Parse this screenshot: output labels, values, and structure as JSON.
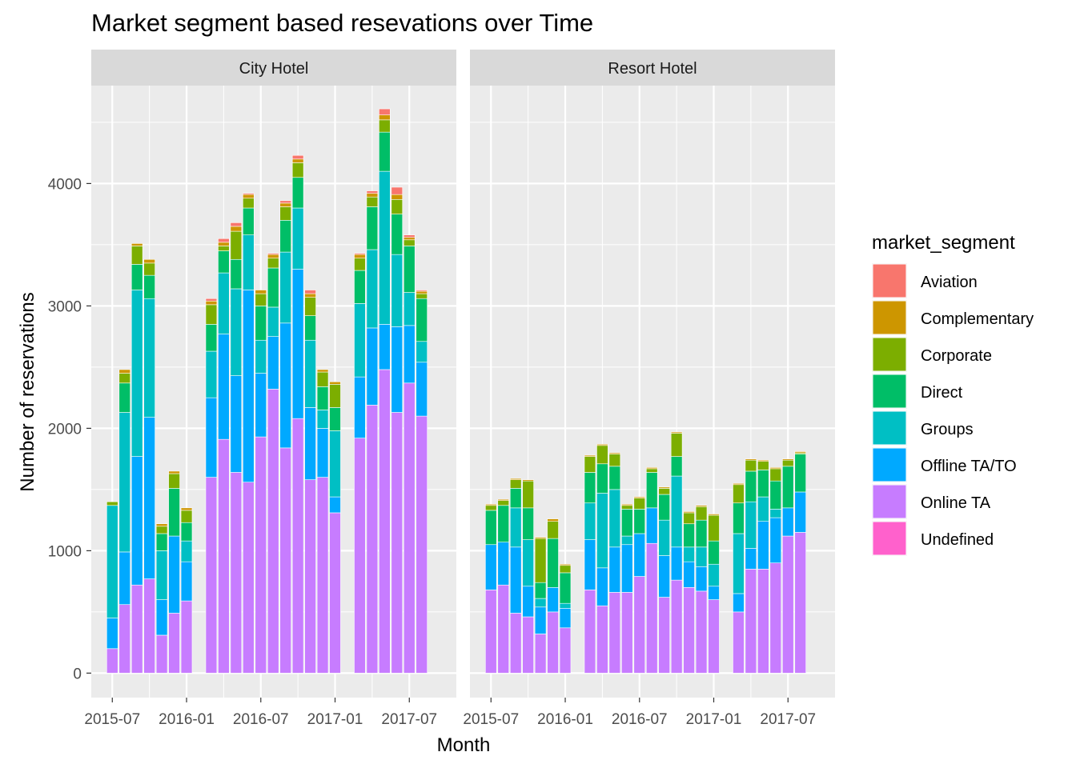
{
  "chart_data": {
    "type": "bar",
    "stacked": true,
    "title": "Market segment based resevations over Time",
    "xlabel": "Month",
    "ylabel": "Number of reservations",
    "ylim": [
      -200,
      4800
    ],
    "yticks": [
      0,
      1000,
      2000,
      3000,
      4000
    ],
    "x_range_months": [
      -1.7,
      27.8
    ],
    "xticks": [
      {
        "label": "2015-07",
        "month_index": 0
      },
      {
        "label": "2016-01",
        "month_index": 6
      },
      {
        "label": "2016-07",
        "month_index": 12
      },
      {
        "label": "2017-01",
        "month_index": 18
      },
      {
        "label": "2017-07",
        "month_index": 24
      }
    ],
    "grid": true,
    "legend": {
      "title": "market_segment",
      "position": "right",
      "entries": [
        "Aviation",
        "Complementary",
        "Corporate",
        "Direct",
        "Groups",
        "Offline TA/TO",
        "Online TA",
        "Undefined"
      ]
    },
    "colors": {
      "Aviation": "#F8766D",
      "Complementary": "#CD9600",
      "Corporate": "#7CAE00",
      "Direct": "#00BE67",
      "Groups": "#00BFC4",
      "Offline TA/TO": "#00A9FF",
      "Online TA": "#C77CFF",
      "Undefined": "#FF61CC"
    },
    "stack_order": [
      "Online TA",
      "Offline TA/TO",
      "Groups",
      "Direct",
      "Corporate",
      "Complementary",
      "Aviation",
      "Undefined"
    ],
    "months": [
      "2015-07",
      "2015-08",
      "2015-09",
      "2015-10",
      "2015-11",
      "2015-12",
      "2016-01",
      "2016-02",
      "2016-03",
      "2016-04",
      "2016-05",
      "2016-06",
      "2016-07",
      "2016-08",
      "2016-09",
      "2016-10",
      "2016-11",
      "2016-12",
      "2017-01",
      "2017-02",
      "2017-03",
      "2017-04",
      "2017-05",
      "2017-06",
      "2017-07",
      "2017-08"
    ],
    "panels": [
      {
        "name": "City Hotel",
        "series": [
          {
            "name": "Online TA",
            "values": [
              200,
              560,
              720,
              770,
              310,
              490,
              590,
              0,
              1600,
              1910,
              1640,
              1560,
              1930,
              2320,
              1840,
              2080,
              1580,
              1600,
              1310,
              0,
              1920,
              2190,
              2480,
              2130,
              2370,
              2100
            ]
          },
          {
            "name": "Offline TA/TO",
            "values": [
              250,
              430,
              1050,
              1320,
              290,
              630,
              320,
              0,
              650,
              860,
              790,
              1570,
              520,
              430,
              1020,
              1220,
              590,
              400,
              130,
              0,
              500,
              630,
              370,
              700,
              470,
              440
            ]
          },
          {
            "name": "Groups",
            "values": [
              920,
              1140,
              1360,
              970,
              400,
              0,
              170,
              0,
              380,
              500,
              710,
              450,
              270,
              240,
              580,
              500,
              550,
              150,
              540,
              0,
              600,
              640,
              1250,
              590,
              270,
              170
            ]
          },
          {
            "name": "Direct",
            "values": [
              0,
              240,
              210,
              190,
              140,
              390,
              150,
              0,
              220,
              180,
              240,
              220,
              280,
              320,
              260,
              250,
              200,
              190,
              190,
              0,
              270,
              350,
              320,
              330,
              380,
              350
            ]
          },
          {
            "name": "Corporate",
            "values": [
              30,
              80,
              150,
              100,
              60,
              120,
              100,
              0,
              160,
              40,
              230,
              80,
              100,
              80,
              110,
              120,
              150,
              120,
              190,
              0,
              100,
              80,
              100,
              120,
              50,
              40
            ]
          },
          {
            "name": "Complementary",
            "values": [
              0,
              30,
              20,
              30,
              20,
              20,
              20,
              0,
              30,
              30,
              40,
              30,
              30,
              30,
              30,
              30,
              30,
              20,
              20,
              0,
              30,
              30,
              40,
              40,
              20,
              20
            ]
          },
          {
            "name": "Aviation",
            "values": [
              0,
              0,
              0,
              0,
              0,
              0,
              0,
              0,
              20,
              30,
              30,
              10,
              0,
              10,
              20,
              30,
              30,
              0,
              0,
              0,
              10,
              20,
              50,
              60,
              20,
              10
            ]
          },
          {
            "name": "Undefined",
            "values": [
              0,
              0,
              0,
              0,
              0,
              0,
              0,
              0,
              0,
              0,
              0,
              0,
              0,
              0,
              0,
              0,
              0,
              0,
              0,
              0,
              0,
              0,
              0,
              0,
              0,
              0
            ]
          }
        ]
      },
      {
        "name": "Resort Hotel",
        "series": [
          {
            "name": "Online TA",
            "values": [
              680,
              720,
              490,
              460,
              320,
              500,
              370,
              0,
              680,
              550,
              660,
              660,
              790,
              1060,
              620,
              760,
              700,
              670,
              600,
              0,
              500,
              850,
              850,
              900,
              1120,
              1150
            ]
          },
          {
            "name": "Offline TA/TO",
            "values": [
              370,
              350,
              540,
              250,
              220,
              200,
              160,
              0,
              410,
              310,
              370,
              390,
              350,
              290,
              340,
              270,
              210,
              200,
              110,
              0,
              150,
              170,
              390,
              370,
              230,
              330
            ]
          },
          {
            "name": "Groups",
            "values": [
              0,
              0,
              320,
              380,
              70,
              0,
              40,
              0,
              300,
              610,
              470,
              70,
              0,
              0,
              290,
              580,
              120,
              160,
              180,
              0,
              490,
              380,
              200,
              70,
              0,
              0
            ]
          },
          {
            "name": "Direct",
            "values": [
              280,
              300,
              160,
              260,
              130,
              400,
              250,
              0,
              250,
              240,
              190,
              220,
              200,
              290,
              210,
              160,
              190,
              220,
              190,
              0,
              250,
              250,
              220,
              230,
              340,
              310
            ]
          },
          {
            "name": "Corporate",
            "values": [
              40,
              40,
              70,
              220,
              360,
              140,
              60,
              0,
              130,
              150,
              100,
              30,
              90,
              30,
              50,
              190,
              90,
              110,
              210,
              0,
              150,
              90,
              70,
              100,
              50,
              10
            ]
          },
          {
            "name": "Complementary",
            "values": [
              10,
              10,
              10,
              10,
              10,
              20,
              10,
              0,
              10,
              10,
              10,
              10,
              10,
              10,
              10,
              10,
              10,
              10,
              10,
              0,
              10,
              10,
              10,
              10,
              10,
              10
            ]
          },
          {
            "name": "Aviation",
            "values": [
              0,
              0,
              0,
              0,
              0,
              0,
              0,
              0,
              0,
              0,
              0,
              0,
              0,
              0,
              0,
              0,
              0,
              0,
              0,
              0,
              0,
              0,
              0,
              0,
              0,
              0
            ]
          },
          {
            "name": "Undefined",
            "values": [
              0,
              0,
              0,
              0,
              0,
              0,
              0,
              0,
              0,
              0,
              0,
              0,
              0,
              0,
              0,
              0,
              0,
              0,
              0,
              0,
              0,
              0,
              0,
              0,
              0,
              0
            ]
          }
        ]
      }
    ]
  }
}
